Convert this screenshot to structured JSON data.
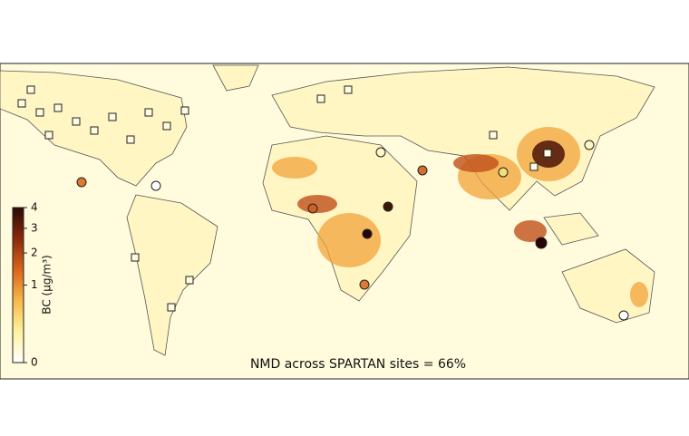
{
  "colorbar": {
    "label": "BC (μg/m³)",
    "lim": [
      0,
      4
    ],
    "ticks": [
      0,
      1,
      2,
      3,
      4
    ],
    "scale": "sqrt",
    "colors": [
      "#ffffff",
      "#fff3a0",
      "#f7b84a",
      "#d9641c",
      "#8a2a0a",
      "#2a0a0a"
    ]
  },
  "annotation": "NMD across SPARTAN sites = 66%"
}
